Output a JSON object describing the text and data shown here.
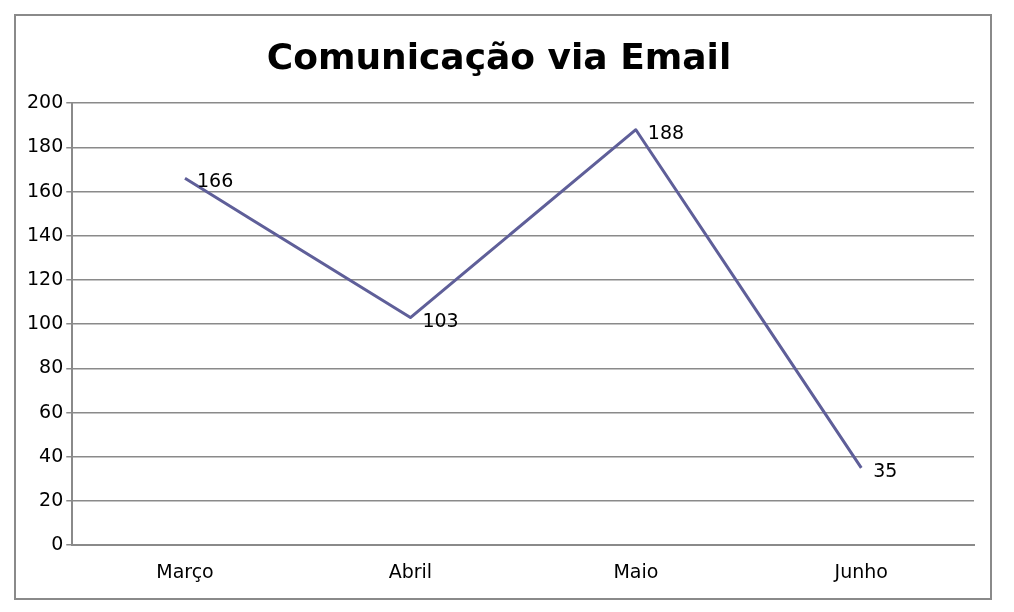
{
  "chart_data": {
    "type": "line",
    "title": "Comunicação via Email",
    "categories": [
      "Março",
      "Abril",
      "Maio",
      "Junho"
    ],
    "series": [
      {
        "color": "#5f5f99",
        "values": [
          166,
          103,
          188,
          35
        ]
      }
    ],
    "ylim": [
      0,
      200
    ],
    "yticks": [
      0,
      20,
      40,
      60,
      80,
      100,
      120,
      140,
      160,
      180,
      200
    ],
    "grid": "y",
    "legend": false,
    "marker": "none",
    "line_style": "solid",
    "data_labels": true
  }
}
